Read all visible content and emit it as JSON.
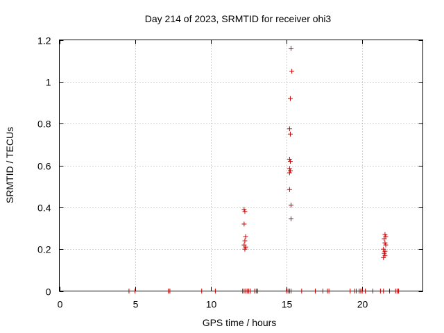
{
  "chart_data": {
    "type": "scatter",
    "title": "Day 214 of 2023, SRMTID for receiver ohi3",
    "xlabel": "GPS time / hours",
    "ylabel": "SRMTID / TECUs",
    "xlim": [
      0,
      24
    ],
    "ylim": [
      0,
      1.2
    ],
    "x_ticks": [
      0,
      5,
      10,
      15,
      20
    ],
    "x_tick_labels": [
      "0",
      "5",
      "10",
      "15",
      "20"
    ],
    "y_ticks": [
      0,
      0.2,
      0.4,
      0.6,
      0.8,
      1.0,
      1.2
    ],
    "y_tick_labels": [
      "0",
      "0.2",
      "0.4",
      "0.6",
      "0.8",
      "1",
      "1.2"
    ],
    "grid": true,
    "legend": "none",
    "marker": "plus",
    "color": "#cc0000",
    "series": [
      {
        "points": [
          [
            4.6,
            0
          ],
          [
            5.0,
            0
          ],
          [
            7.2,
            0
          ],
          [
            7.3,
            0
          ],
          [
            9.4,
            0
          ],
          [
            10.3,
            0
          ],
          [
            12.1,
            0
          ],
          [
            12.2,
            0
          ],
          [
            12.3,
            0
          ],
          [
            12.4,
            0
          ],
          [
            12.5,
            0
          ],
          [
            12.6,
            0
          ],
          [
            12.9,
            0
          ],
          [
            13.0,
            0
          ],
          [
            13.1,
            0
          ],
          [
            15.0,
            0
          ],
          [
            15.1,
            0
          ],
          [
            15.2,
            0
          ],
          [
            15.3,
            0
          ],
          [
            16.0,
            0
          ],
          [
            16.9,
            0
          ],
          [
            17.4,
            0
          ],
          [
            17.7,
            0
          ],
          [
            17.8,
            0
          ],
          [
            19.2,
            0
          ],
          [
            19.5,
            0
          ],
          [
            19.6,
            0
          ],
          [
            19.8,
            0
          ],
          [
            19.9,
            0
          ],
          [
            20.0,
            0
          ],
          [
            20.2,
            0
          ],
          [
            20.7,
            0
          ],
          [
            21.2,
            0
          ],
          [
            21.4,
            0
          ],
          [
            21.8,
            0
          ],
          [
            22.2,
            0
          ],
          [
            22.3,
            0
          ],
          [
            22.4,
            0
          ],
          [
            12.2,
            0.39
          ],
          [
            12.25,
            0.38
          ],
          [
            12.2,
            0.32
          ],
          [
            12.3,
            0.26
          ],
          [
            12.25,
            0.24
          ],
          [
            12.2,
            0.22
          ],
          [
            12.3,
            0.21
          ],
          [
            12.25,
            0.2
          ],
          [
            15.3,
            1.16
          ],
          [
            15.35,
            1.05
          ],
          [
            15.25,
            0.92
          ],
          [
            15.2,
            0.775
          ],
          [
            15.25,
            0.75
          ],
          [
            15.2,
            0.63
          ],
          [
            15.25,
            0.62
          ],
          [
            15.2,
            0.585
          ],
          [
            15.25,
            0.575
          ],
          [
            15.2,
            0.565
          ],
          [
            15.2,
            0.485
          ],
          [
            15.3,
            0.41
          ],
          [
            15.3,
            0.345
          ],
          [
            21.5,
            0.27
          ],
          [
            21.55,
            0.26
          ],
          [
            21.45,
            0.25
          ],
          [
            21.5,
            0.23
          ],
          [
            21.55,
            0.22
          ],
          [
            21.4,
            0.2
          ],
          [
            21.5,
            0.19
          ],
          [
            21.45,
            0.18
          ],
          [
            21.5,
            0.17
          ],
          [
            21.4,
            0.16
          ]
        ]
      }
    ]
  }
}
